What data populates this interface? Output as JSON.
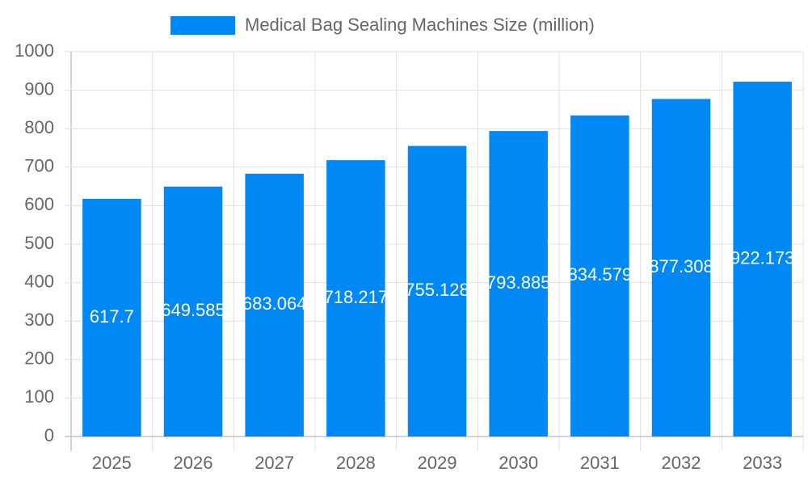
{
  "chart_data": {
    "type": "bar",
    "legend": "Medical Bag Sealing Machines Size (million)",
    "categories": [
      "2025",
      "2026",
      "2027",
      "2028",
      "2029",
      "2030",
      "2031",
      "2032",
      "2033"
    ],
    "values": [
      617.7,
      649.585,
      683.064,
      718.217,
      755.128,
      793.885,
      834.579,
      877.308,
      922.173
    ],
    "color": "#0088f5",
    "ylim": [
      0,
      1000
    ],
    "yticks": [
      0,
      100,
      200,
      300,
      400,
      500,
      600,
      700,
      800,
      900,
      1000
    ],
    "grid": true,
    "legend_position": "top"
  }
}
